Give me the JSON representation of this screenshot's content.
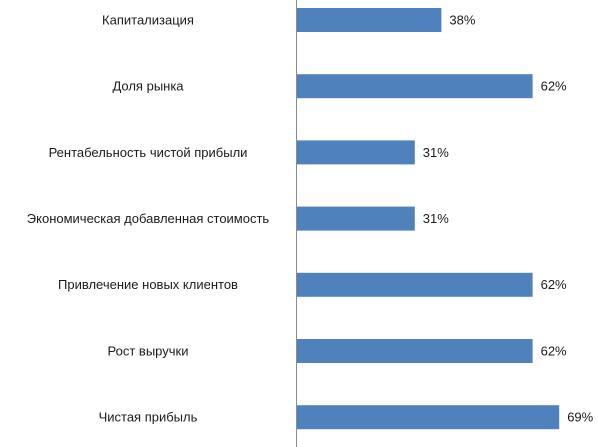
{
  "chart_data": {
    "type": "bar",
    "orientation": "horizontal",
    "categories": [
      "Капитализация",
      "Доля рынка",
      "Рентабельность чистой прибыли",
      "Экономическая добавленная стоимость",
      "Привлечение новых клиентов",
      "Рост выручки",
      "Чистая прибыль"
    ],
    "values": [
      38,
      62,
      31,
      31,
      62,
      62,
      69
    ],
    "value_labels": [
      "38%",
      "62%",
      "31%",
      "31%",
      "62%",
      "62%",
      "69%"
    ],
    "unit": "%",
    "xlim": [
      0,
      100
    ],
    "grid": false,
    "legend": "none",
    "bar_color": "#4f81bd"
  }
}
